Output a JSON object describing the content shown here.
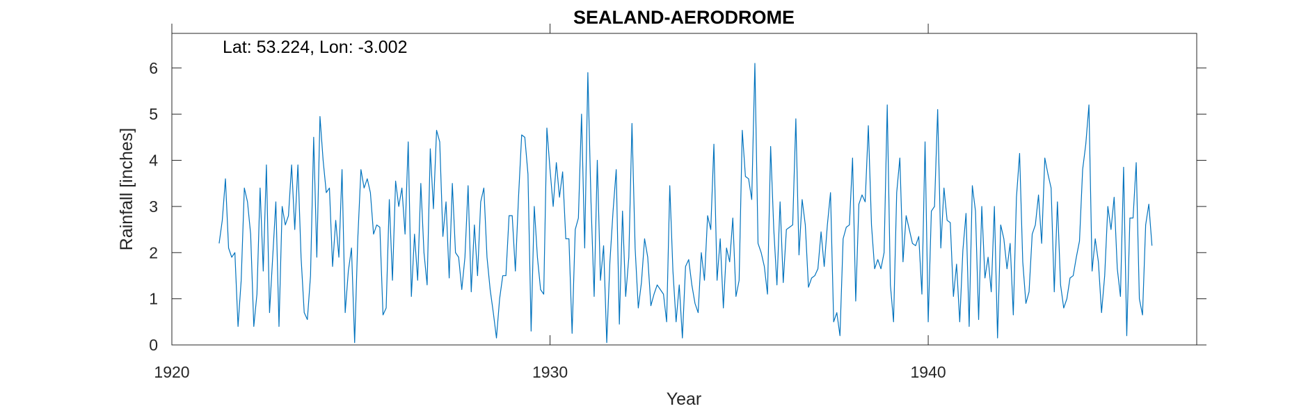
{
  "chart_data": {
    "type": "line",
    "title": "SEALAND-AERODROME",
    "annotation": "Lat: 53.224, Lon: -3.002",
    "xlabel": "Year",
    "ylabel": "Rainfall [inches]",
    "xlim": [
      1920,
      1947.1
    ],
    "ylim": [
      0,
      6.75
    ],
    "xticks": [
      1920,
      1930,
      1940
    ],
    "yticks": [
      0,
      1,
      2,
      3,
      4,
      5,
      6
    ],
    "grid": false,
    "line_color": "#0072BD",
    "series": [
      {
        "x_start": 1921.25,
        "x_step": 0.083333,
        "values": [
          2.2,
          2.7,
          3.6,
          2.1,
          1.9,
          2.0,
          0.4,
          1.4,
          3.4,
          3.1,
          2.4,
          0.4,
          1.1,
          3.4,
          1.6,
          3.9,
          0.7,
          1.9,
          3.1,
          0.4,
          3.0,
          2.6,
          2.8,
          3.9,
          2.5,
          3.9,
          1.9,
          0.7,
          0.55,
          1.5,
          4.5,
          1.9,
          4.95,
          4.0,
          3.3,
          3.4,
          1.7,
          2.7,
          1.9,
          3.8,
          0.7,
          1.6,
          2.1,
          0.05,
          2.3,
          3.8,
          3.4,
          3.6,
          3.3,
          2.4,
          2.6,
          2.55,
          0.65,
          0.8,
          3.15,
          1.4,
          3.55,
          3.0,
          3.4,
          2.4,
          4.4,
          1.05,
          2.4,
          1.4,
          3.5,
          2.0,
          1.3,
          4.25,
          2.95,
          4.65,
          4.4,
          2.35,
          3.1,
          1.45,
          3.5,
          2.0,
          1.9,
          1.2,
          1.9,
          3.45,
          1.15,
          2.6,
          1.5,
          3.1,
          3.4,
          1.9,
          1.2,
          0.7,
          0.15,
          1.0,
          1.5,
          1.5,
          2.8,
          2.8,
          1.6,
          3.2,
          4.55,
          4.5,
          3.7,
          0.3,
          3.0,
          1.9,
          1.2,
          1.1,
          4.7,
          3.8,
          3.0,
          3.95,
          3.2,
          3.75,
          2.3,
          2.3,
          0.25,
          2.5,
          2.75,
          5.0,
          2.1,
          5.9,
          3.1,
          1.05,
          4.0,
          1.4,
          2.15,
          0.05,
          1.8,
          2.9,
          3.8,
          0.45,
          2.9,
          1.05,
          1.9,
          4.8,
          2.1,
          0.8,
          1.35,
          2.3,
          1.9,
          0.85,
          1.1,
          1.3,
          1.2,
          1.1,
          0.5,
          3.45,
          1.6,
          0.5,
          1.3,
          0.15,
          1.7,
          1.85,
          1.3,
          0.9,
          0.7,
          2.0,
          1.4,
          2.8,
          2.5,
          4.35,
          1.4,
          2.3,
          0.8,
          2.1,
          1.8,
          2.75,
          1.05,
          1.4,
          4.65,
          3.65,
          3.6,
          3.15,
          6.1,
          2.2,
          2.0,
          1.7,
          1.1,
          4.3,
          2.5,
          1.3,
          3.1,
          1.35,
          2.5,
          2.55,
          2.6,
          4.9,
          1.95,
          3.15,
          2.6,
          1.25,
          1.45,
          1.5,
          1.65,
          2.45,
          1.7,
          2.6,
          3.3,
          0.5,
          0.7,
          0.2,
          2.3,
          2.55,
          2.6,
          4.05,
          0.95,
          3.05,
          3.25,
          3.1,
          4.75,
          2.6,
          1.65,
          1.85,
          1.65,
          2.0,
          5.2,
          1.3,
          0.5,
          3.3,
          4.05,
          1.8,
          2.8,
          2.5,
          2.2,
          2.15,
          2.35,
          1.1,
          4.4,
          0.5,
          2.9,
          3.0,
          5.1,
          2.1,
          3.4,
          2.7,
          2.65,
          1.05,
          1.75,
          0.5,
          2.05,
          2.85,
          0.4,
          3.45,
          2.9,
          0.55,
          3.0,
          1.45,
          1.9,
          1.15,
          3.0,
          0.15,
          2.6,
          2.3,
          1.65,
          2.2,
          0.65,
          3.2,
          4.15,
          1.8,
          0.9,
          1.15,
          2.4,
          2.6,
          3.25,
          2.2,
          4.05,
          3.7,
          3.4,
          1.15,
          3.1,
          1.3,
          0.8,
          1.0,
          1.45,
          1.5,
          1.9,
          2.25,
          3.8,
          4.35,
          5.2,
          1.6,
          2.3,
          1.8,
          0.7,
          1.5,
          3.0,
          2.5,
          3.2,
          1.65,
          1.05,
          3.85,
          0.2,
          2.75,
          2.75,
          3.95,
          1.0,
          0.65,
          2.6,
          3.05,
          2.15
        ]
      }
    ]
  }
}
